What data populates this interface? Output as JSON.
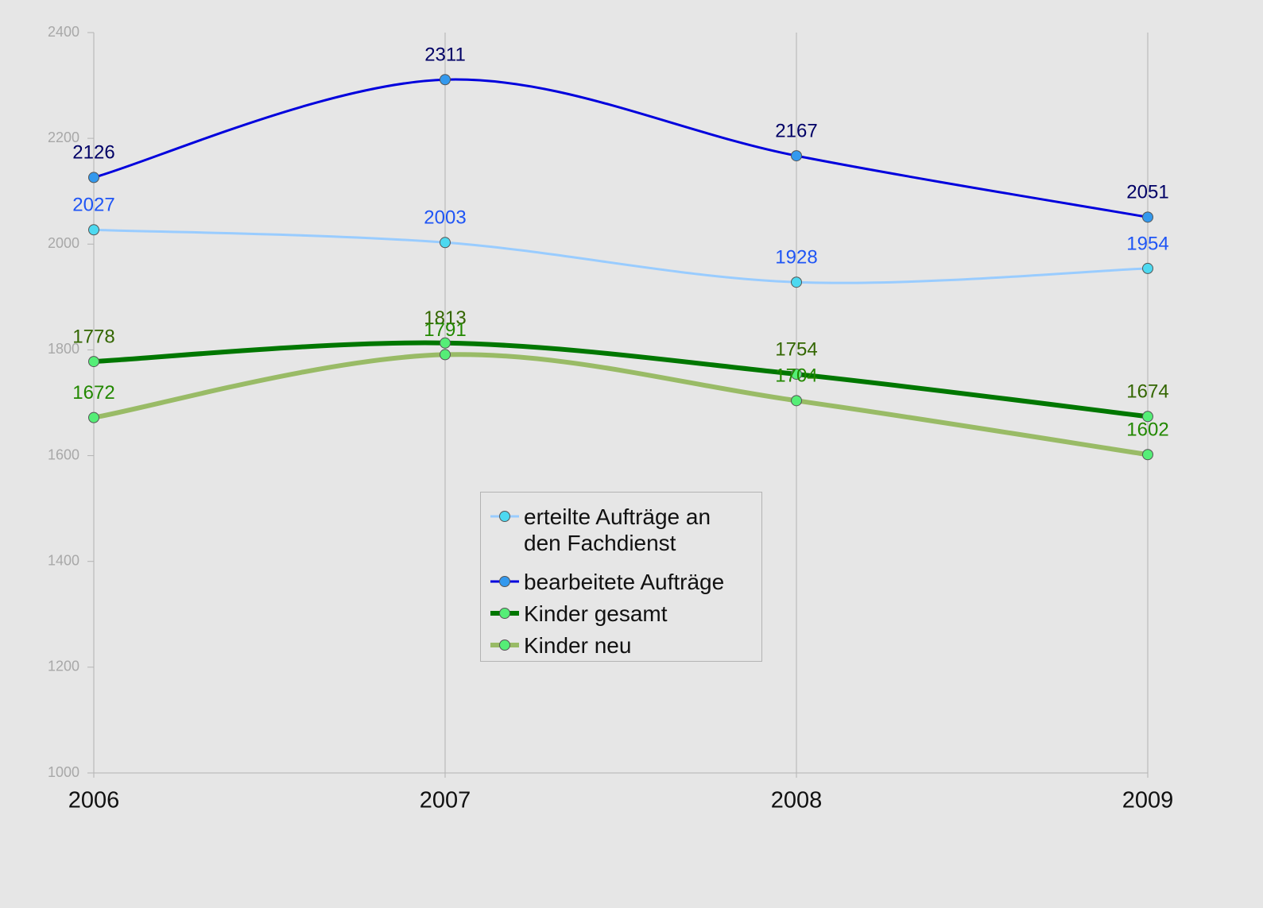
{
  "chart_data": {
    "type": "line",
    "categories": [
      "2006",
      "2007",
      "2008",
      "2009"
    ],
    "series": [
      {
        "name": "erteilte Aufträge an den Fachdienst",
        "color": "#99ccff",
        "marker_color": "#4dd9f0",
        "label_color": "#1f55f5",
        "width": 3,
        "values": [
          2027,
          2003,
          1928,
          1954
        ]
      },
      {
        "name": "bearbeitete Aufträge",
        "color": "#0000dd",
        "marker_color": "#3399ee",
        "label_color": "#000066",
        "width": 3,
        "values": [
          2126,
          2311,
          2167,
          2051
        ]
      },
      {
        "name": "Kinder gesamt",
        "color": "#007700",
        "marker_color": "#55ee77",
        "label_color": "#336600",
        "width": 6,
        "values": [
          1778,
          1813,
          1754,
          1674
        ]
      },
      {
        "name": "Kinder neu",
        "color": "#99bb66",
        "marker_color": "#55ee77",
        "label_color": "#228800",
        "width": 6,
        "values": [
          1672,
          1791,
          1704,
          1602
        ]
      }
    ],
    "ylim": [
      1000,
      2400
    ],
    "yticks": [
      1000,
      1200,
      1400,
      1600,
      1800,
      2000,
      2200,
      2400
    ],
    "smooth": true,
    "data_labels": true
  }
}
